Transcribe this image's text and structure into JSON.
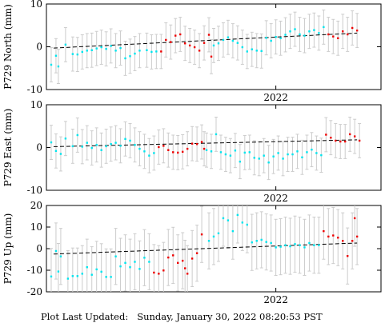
{
  "footer": {
    "label": "Plot Last Updated:",
    "timestamp": "Sunday, January 30, 2022 08:20:53 PST"
  },
  "chart_data": [
    {
      "type": "scatter",
      "station": "P729",
      "ylabel": "P729 North (mm)",
      "xlabel": "",
      "x_tick_label": "2022",
      "ylim": [
        -10,
        10
      ],
      "yticks": [
        -10,
        0,
        10
      ],
      "x_range_days": [
        0,
        140
      ],
      "x_tick_day": 96,
      "colors": {
        "older": "#00e5ee",
        "recent": "#ee0000",
        "error_bar": "#cccccc",
        "trend": "#000000"
      },
      "trend": {
        "start": [
          3,
          -0.3
        ],
        "end": [
          130,
          3.2
        ]
      },
      "error_bar_halfwidth": 4,
      "series": [
        {
          "color_key": "older",
          "points": [
            [
              2,
              -4.2
            ],
            [
              4,
              -2.1
            ],
            [
              5,
              -4.6
            ],
            [
              8,
              0.5
            ],
            [
              11,
              -1.7
            ],
            [
              13,
              -1.8
            ],
            [
              15,
              -1.2
            ],
            [
              17,
              -0.9
            ],
            [
              19,
              -0.8
            ],
            [
              21,
              -0.4
            ],
            [
              23,
              -0.1
            ],
            [
              25,
              -0.5
            ],
            [
              27,
              0.2
            ],
            [
              29,
              -0.9
            ],
            [
              31,
              -0.3
            ],
            [
              33,
              -2.7
            ],
            [
              35,
              -2.2
            ],
            [
              37,
              -1.6
            ],
            [
              39,
              -0.9
            ],
            [
              42,
              -0.8
            ],
            [
              44,
              -1.2
            ],
            [
              46,
              -1.1
            ],
            [
              70,
              0.3
            ],
            [
              72,
              0.8
            ],
            [
              74,
              1.6
            ],
            [
              76,
              2.2
            ],
            [
              78,
              1.4
            ],
            [
              80,
              0.9
            ],
            [
              82,
              -0.1
            ],
            [
              84,
              -1.1
            ],
            [
              86,
              -0.6
            ],
            [
              88,
              -0.9
            ],
            [
              90,
              -1.0
            ],
            [
              92,
              2.1
            ],
            [
              94,
              1.4
            ],
            [
              96,
              2.3
            ],
            [
              98,
              2.0
            ],
            [
              100,
              2.8
            ],
            [
              102,
              3.6
            ],
            [
              104,
              4.1
            ],
            [
              106,
              2.9
            ],
            [
              108,
              2.6
            ],
            [
              110,
              3.6
            ],
            [
              112,
              3.9
            ],
            [
              114,
              3.2
            ],
            [
              116,
              4.6
            ]
          ]
        },
        {
          "color_key": "recent",
          "points": [
            [
              48,
              -1.1
            ],
            [
              50,
              1.6
            ],
            [
              52,
              1.1
            ],
            [
              54,
              2.6
            ],
            [
              56,
              2.9
            ],
            [
              58,
              0.8
            ],
            [
              60,
              0.3
            ],
            [
              62,
              -0.1
            ],
            [
              64,
              -0.9
            ],
            [
              66,
              0.9
            ],
            [
              68,
              2.8
            ],
            [
              69,
              -2.3
            ],
            [
              118,
              2.9
            ],
            [
              120,
              2.4
            ],
            [
              122,
              2.0
            ],
            [
              124,
              3.6
            ],
            [
              126,
              2.9
            ],
            [
              128,
              4.4
            ],
            [
              130,
              3.8
            ]
          ]
        }
      ]
    },
    {
      "type": "scatter",
      "station": "P729",
      "ylabel": "P729 East (mm)",
      "xlabel": "",
      "x_tick_label": "2022",
      "ylim": [
        -10,
        10
      ],
      "yticks": [
        -10,
        0,
        10
      ],
      "x_range_days": [
        0,
        140
      ],
      "x_tick_day": 96,
      "colors": {
        "older": "#00e5ee",
        "recent": "#ee0000",
        "error_bar": "#cccccc",
        "trend": "#000000"
      },
      "trend": {
        "start": [
          3,
          0.2
        ],
        "end": [
          130,
          1.8
        ]
      },
      "error_bar_halfwidth": 4,
      "series": [
        {
          "color_key": "older",
          "points": [
            [
              2,
              1.2
            ],
            [
              4,
              -0.8
            ],
            [
              6,
              -1.5
            ],
            [
              8,
              2.1
            ],
            [
              11,
              0.3
            ],
            [
              13,
              2.9
            ],
            [
              15,
              0.2
            ],
            [
              17,
              1.1
            ],
            [
              19,
              -0.1
            ],
            [
              21,
              0.6
            ],
            [
              23,
              -0.6
            ],
            [
              25,
              0.3
            ],
            [
              27,
              0.8
            ],
            [
              29,
              1.1
            ],
            [
              31,
              0.4
            ],
            [
              33,
              2.0
            ],
            [
              35,
              1.6
            ],
            [
              37,
              0.6
            ],
            [
              39,
              -0.3
            ],
            [
              41,
              -0.9
            ],
            [
              43,
              -1.9
            ],
            [
              45,
              -1.3
            ],
            [
              67,
              -0.6
            ],
            [
              69,
              -0.9
            ],
            [
              71,
              3.1
            ],
            [
              73,
              -1.1
            ],
            [
              75,
              -1.6
            ],
            [
              77,
              -1.9
            ],
            [
              79,
              -0.7
            ],
            [
              81,
              -3.3
            ],
            [
              83,
              -1.2
            ],
            [
              85,
              -1.1
            ],
            [
              87,
              -2.4
            ],
            [
              89,
              -2.6
            ],
            [
              91,
              -1.9
            ],
            [
              93,
              -3.5
            ],
            [
              95,
              -2.1
            ],
            [
              97,
              -1.3
            ],
            [
              99,
              -2.6
            ],
            [
              101,
              -1.6
            ],
            [
              103,
              -1.6
            ],
            [
              105,
              -0.9
            ],
            [
              107,
              -2.3
            ],
            [
              109,
              -1.1
            ],
            [
              111,
              -0.5
            ],
            [
              113,
              -1.3
            ],
            [
              115,
              -1.8
            ]
          ]
        },
        {
          "color_key": "recent",
          "points": [
            [
              47,
              0.1
            ],
            [
              49,
              0.4
            ],
            [
              51,
              -0.6
            ],
            [
              53,
              -1.1
            ],
            [
              55,
              -1.2
            ],
            [
              57,
              -1.0
            ],
            [
              59,
              -0.3
            ],
            [
              61,
              0.9
            ],
            [
              63,
              0.8
            ],
            [
              65,
              1.3
            ],
            [
              66,
              -0.3
            ],
            [
              117,
              3.0
            ],
            [
              119,
              2.3
            ],
            [
              121,
              1.6
            ],
            [
              123,
              1.4
            ],
            [
              125,
              1.4
            ],
            [
              127,
              3.1
            ],
            [
              129,
              2.6
            ],
            [
              131,
              1.6
            ]
          ]
        }
      ]
    },
    {
      "type": "scatter",
      "station": "P729",
      "ylabel": "P729 Up (mm)",
      "xlabel": "",
      "x_tick_label": "2022",
      "ylim": [
        -20,
        20
      ],
      "yticks": [
        -20,
        -10,
        0,
        10,
        20
      ],
      "x_range_days": [
        0,
        140
      ],
      "x_tick_day": 96,
      "colors": {
        "older": "#00e5ee",
        "recent": "#ee0000",
        "error_bar": "#cccccc",
        "trend": "#000000"
      },
      "trend": {
        "start": [
          3,
          -2.5
        ],
        "end": [
          130,
          2.6
        ]
      },
      "error_bar_halfwidth": 13,
      "series": [
        {
          "color_key": "older",
          "points": [
            [
              2,
              -12.9
            ],
            [
              4,
              -1.1
            ],
            [
              5,
              -10.6
            ],
            [
              6,
              -3.6
            ],
            [
              9,
              -13.9
            ],
            [
              11,
              -12.7
            ],
            [
              13,
              -12.7
            ],
            [
              15,
              -11.6
            ],
            [
              17,
              -8.6
            ],
            [
              19,
              -12.1
            ],
            [
              21,
              -9.6
            ],
            [
              23,
              -10.7
            ],
            [
              25,
              -13.1
            ],
            [
              27,
              -13.1
            ],
            [
              29,
              -3.6
            ],
            [
              31,
              -8.2
            ],
            [
              33,
              -6.6
            ],
            [
              35,
              -8.6
            ],
            [
              37,
              -6.1
            ],
            [
              39,
              -9.4
            ],
            [
              41,
              -4.2
            ],
            [
              43,
              -6.1
            ],
            [
              68,
              3.6
            ],
            [
              70,
              5.6
            ],
            [
              72,
              7.1
            ],
            [
              74,
              14.1
            ],
            [
              76,
              13.1
            ],
            [
              78,
              8.1
            ],
            [
              80,
              15.6
            ],
            [
              82,
              12.1
            ],
            [
              84,
              11.1
            ],
            [
              86,
              2.9
            ],
            [
              88,
              3.6
            ],
            [
              90,
              4.1
            ],
            [
              92,
              3.1
            ],
            [
              94,
              2.6
            ],
            [
              96,
              0.6
            ],
            [
              98,
              0.9
            ],
            [
              100,
              1.6
            ],
            [
              102,
              1.1
            ],
            [
              104,
              2.1
            ],
            [
              106,
              1.6
            ],
            [
              108,
              0.6
            ],
            [
              110,
              2.6
            ],
            [
              112,
              1.6
            ],
            [
              114,
              1.6
            ]
          ]
        },
        {
          "color_key": "recent",
          "points": [
            [
              45,
              -11.1
            ],
            [
              47,
              -11.6
            ],
            [
              49,
              -10.1
            ],
            [
              51,
              -4.1
            ],
            [
              53,
              -3.1
            ],
            [
              55,
              -6.6
            ],
            [
              57,
              -5.6
            ],
            [
              58,
              -9.1
            ],
            [
              59,
              -11.6
            ],
            [
              61,
              -4.6
            ],
            [
              63,
              -2.1
            ],
            [
              65,
              6.6
            ],
            [
              116,
              8.1
            ],
            [
              118,
              5.6
            ],
            [
              120,
              6.1
            ],
            [
              122,
              5.1
            ],
            [
              124,
              3.6
            ],
            [
              126,
              -3.4
            ],
            [
              128,
              3.6
            ],
            [
              129,
              14.1
            ],
            [
              130,
              5.6
            ]
          ]
        }
      ]
    }
  ]
}
